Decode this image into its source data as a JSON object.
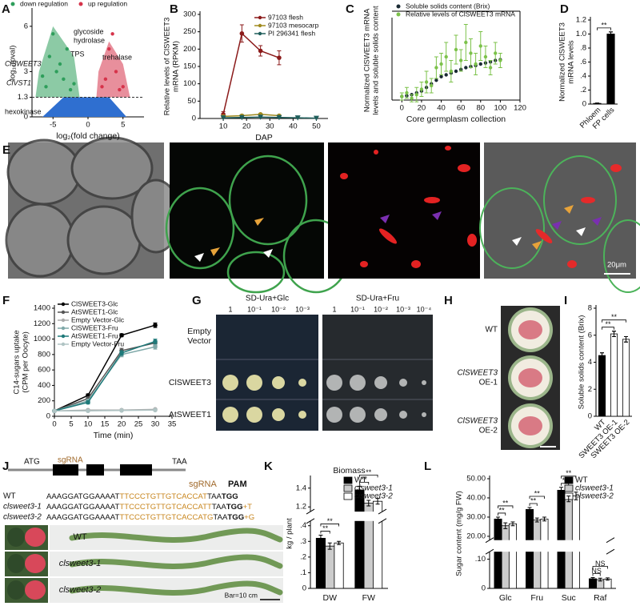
{
  "chart_data": [
    {
      "type": "scatter",
      "label": "A",
      "xlabel": "log₂(fold change)",
      "ylabel": [
        "-log₁₀(pval)"
      ],
      "xlim": [
        -8,
        8
      ],
      "xticks": [
        -5,
        0,
        5
      ],
      "ylim": [
        0,
        7
      ],
      "yticks": [
        0,
        1.3,
        3,
        6
      ],
      "threshold": 1.3,
      "series": [
        {
          "name": "down regulation",
          "color": "#2e9e5b",
          "x": [
            -6.5,
            -6,
            -5.5,
            -5,
            -4.5,
            -4,
            -3.5,
            -3,
            -2.5,
            -2
          ],
          "values": [
            2.7,
            2,
            4,
            5.5,
            3,
            3.5,
            2.5,
            4.5,
            1.8,
            2.2
          ]
        },
        {
          "name": "up regulation",
          "color": "#d6334a",
          "x": [
            2,
            2.5,
            3,
            3.5,
            4,
            4.5,
            5
          ],
          "values": [
            2,
            2.5,
            4.5,
            5.5,
            3,
            1.8,
            2
          ]
        }
      ],
      "annotations": [
        "ClSWEET3",
        "glycoside",
        "hydrolase",
        "TPS",
        "trehalase",
        "ClVST1",
        "hexokinase"
      ]
    },
    {
      "type": "line",
      "label": "B",
      "ylabel": [
        "Relative levels of ClSWEET3",
        "mRNA (RPKM)"
      ],
      "xlabel": "DAP",
      "xlim": [
        0,
        55
      ],
      "xticks": [
        10,
        20,
        30,
        40,
        50
      ],
      "ylim": [
        0,
        300
      ],
      "yticks": [
        0,
        50,
        100,
        150,
        200,
        250,
        300
      ],
      "series": [
        {
          "name": "97103 flesh",
          "color": "#8b1a1a",
          "marker": "circle",
          "x": [
            10,
            18,
            26,
            34
          ],
          "values": [
            12,
            245,
            195,
            175
          ],
          "errors": [
            8,
            25,
            15,
            20
          ]
        },
        {
          "name": "97103 mesocarp",
          "color": "#a08a1e",
          "marker": "circle",
          "x": [
            10,
            18,
            26,
            34
          ],
          "values": [
            6,
            8,
            12,
            8
          ],
          "errors": [
            2,
            3,
            3,
            2
          ]
        },
        {
          "name": "PI 296341 flesh",
          "color": "#1f5e5b",
          "marker": "triangle",
          "x": [
            10,
            18,
            26,
            34,
            42,
            50
          ],
          "values": [
            2,
            3,
            4,
            3,
            2,
            1
          ]
        }
      ]
    },
    {
      "type": "scatter",
      "label": "C",
      "ylabel": [
        "Normalized ClSWEET3 mRNA",
        "levels and soluble solids content"
      ],
      "xlabel": "Core germplasm collection",
      "xlim": [
        -10,
        120
      ],
      "xticks": [
        0,
        20,
        40,
        60,
        80,
        100,
        120
      ],
      "ylim": [
        0,
        22
      ],
      "box": true,
      "series": [
        {
          "name": "Soluble solids content (Brix)",
          "color": "#1a2a33",
          "x": [
            0,
            5,
            10,
            15,
            20,
            25,
            30,
            35,
            40,
            45,
            50,
            55,
            60,
            65,
            70,
            75,
            80,
            85,
            90,
            95,
            100
          ],
          "values": [
            1,
            1.2,
            1.5,
            2,
            2.5,
            3.5,
            4.5,
            5.5,
            6.5,
            7,
            7.5,
            8,
            8.5,
            9,
            9.3,
            9.6,
            10,
            10.3,
            10.6,
            11,
            11.2
          ]
        },
        {
          "name": "Relative levels of ClSWEET3 mRNA",
          "color": "#7cc24a",
          "x": [
            0,
            5,
            10,
            15,
            20,
            25,
            30,
            35,
            40,
            45,
            50,
            55,
            60,
            65,
            70,
            75,
            80,
            85,
            90,
            95,
            100
          ],
          "values": [
            1,
            2,
            0.5,
            1.5,
            3,
            5,
            4,
            9,
            10,
            12,
            8,
            14,
            11,
            16,
            13,
            10,
            15,
            12,
            9,
            13,
            11
          ],
          "errors": [
            1,
            1.5,
            1,
            2,
            2,
            3,
            2,
            3,
            3,
            4,
            3,
            4,
            3,
            5,
            4,
            3,
            4,
            3,
            2,
            3,
            2
          ]
        }
      ]
    },
    {
      "type": "bar",
      "label": "D",
      "ylabel": [
        "Normalized ClSWEET3",
        "mRNA levels"
      ],
      "categories": [
        "Phloem",
        "FP cells"
      ],
      "values": [
        0.01,
        1.0
      ],
      "errors": [
        0.005,
        0.03
      ],
      "colors": [
        "#000000",
        "#000000"
      ],
      "ylim": [
        0,
        1.2
      ],
      "yticks": [
        0,
        {
          "value": 0.2,
          "label": ".2"
        },
        {
          "value": 0.4,
          "label": ".4"
        },
        {
          "value": 0.6,
          "label": ".6"
        },
        {
          "value": 0.8,
          "label": ".8"
        },
        {
          "value": 1.0,
          "label": "1.0"
        },
        1.2
      ],
      "annotations": [
        "**"
      ]
    },
    {
      "type": "line",
      "label": "F",
      "ylabel": [
        "C14-sugars uptake",
        "(CPM per Oocyte)"
      ],
      "xlabel": "Time (min)",
      "xlim": [
        0,
        35
      ],
      "xticks": [
        0,
        5,
        10,
        15,
        20,
        25,
        30,
        35
      ],
      "ylim": [
        0,
        1400
      ],
      "yticks": [
        0,
        200,
        400,
        600,
        800,
        1000,
        1200,
        1400
      ],
      "series": [
        {
          "name": "ClSWEET3-Glc",
          "color": "#000000",
          "marker": "circle",
          "x": [
            0,
            10,
            20,
            30
          ],
          "values": [
            70,
            270,
            1050,
            1180
          ],
          "errors": [
            5,
            20,
            20,
            30
          ]
        },
        {
          "name": "AtSWEET1-Glc",
          "color": "#555555",
          "marker": "circle",
          "x": [
            0,
            10,
            20,
            30
          ],
          "values": [
            70,
            230,
            850,
            950
          ],
          "errors": [
            5,
            20,
            30,
            30
          ]
        },
        {
          "name": "Empty Vector-Glc",
          "color": "#aaaaaa",
          "marker": "circle",
          "x": [
            0,
            10,
            20,
            30
          ],
          "values": [
            70,
            80,
            80,
            90
          ],
          "errors": [
            5,
            5,
            5,
            5
          ]
        },
        {
          "name": "ClSWEET3-Fru",
          "color": "#7fa8a8",
          "marker": "circle",
          "x": [
            0,
            10,
            20,
            30
          ],
          "values": [
            70,
            200,
            800,
            900
          ],
          "errors": [
            5,
            20,
            30,
            30
          ]
        },
        {
          "name": "AtSWEET1-Fru",
          "color": "#1f7a7a",
          "marker": "circle",
          "x": [
            0,
            10,
            20,
            30
          ],
          "values": [
            70,
            180,
            820,
            970
          ],
          "errors": [
            5,
            20,
            30,
            30
          ]
        },
        {
          "name": "Empty Vector-Fru",
          "color": "#b0c4c4",
          "marker": "circle",
          "x": [
            0,
            10,
            20,
            30
          ],
          "values": [
            70,
            70,
            75,
            80
          ],
          "errors": [
            5,
            5,
            5,
            5
          ]
        }
      ]
    },
    {
      "type": "bar",
      "label": "I",
      "ylabel": [
        "Soluble solids content (Brix)"
      ],
      "categories": [
        "WT",
        "SWEET3 OE-1",
        "SWEET3 OE-2"
      ],
      "values": [
        4.5,
        6.1,
        5.7
      ],
      "errors": [
        0.2,
        0.2,
        0.2
      ],
      "colors": [
        "#000000",
        "#ffffff",
        "#ffffff"
      ],
      "ylim": [
        0,
        8
      ],
      "yticks": [
        0,
        2,
        4,
        6,
        8
      ],
      "annotations": [
        "**",
        "**"
      ]
    },
    {
      "type": "bar",
      "label": "K",
      "title": "Biomass",
      "ylabel": [
        "kg / plant"
      ],
      "categories": [
        "DW",
        "FW"
      ],
      "series": [
        {
          "name": "WT",
          "color": "#000000",
          "values": [
            0.32,
            1.38
          ],
          "errors": [
            0.02,
            0.04
          ]
        },
        {
          "name": "clsweet3-1",
          "color": "#cccccc",
          "values": [
            0.27,
            1.24
          ],
          "errors": [
            0.02,
            0.03
          ]
        },
        {
          "name": "clsweet3-2",
          "color": "#ffffff",
          "values": [
            0.29,
            1.26
          ],
          "errors": [
            0.01,
            0.03
          ]
        }
      ],
      "ylim": [
        0,
        1.5
      ],
      "ybreak": [
        0.42,
        1.15
      ],
      "yticks": [
        0,
        {
          "value": 0.1,
          "label": ".1"
        },
        {
          "value": 0.2,
          "label": ".2"
        },
        {
          "value": 0.3,
          "label": ".3"
        },
        {
          "value": 0.4,
          "label": ".4"
        },
        1.2,
        1.4
      ],
      "annotations": [
        "**",
        "**",
        "**",
        "**"
      ]
    },
    {
      "type": "bar",
      "label": "L",
      "ylabel": [
        "Sugar content (mg/g FW)"
      ],
      "categories": [
        "Glc",
        "Fru",
        "Suc",
        "Raf"
      ],
      "series": [
        {
          "name": "WT",
          "color": "#000000",
          "values": [
            29,
            34,
            44,
            0.033
          ],
          "errors": [
            1,
            1,
            1.5,
            0.004
          ]
        },
        {
          "name": "clsweet3-1",
          "color": "#cccccc",
          "values": [
            25.5,
            28.5,
            39.5,
            0.03
          ],
          "errors": [
            1.5,
            1,
            1.5,
            0.005
          ]
        },
        {
          "name": "clsweet3-2",
          "color": "#ffffff",
          "values": [
            26.5,
            29,
            41,
            0.032
          ],
          "errors": [
            1,
            1,
            2,
            0.004
          ]
        }
      ],
      "ylim": [
        0,
        50
      ],
      "ybreak": [
        0.12,
        18
      ],
      "yticks": [
        0,
        {
          "value": 0.1,
          "label": ".10"
        },
        {
          "value": 20,
          "label": "20.00"
        },
        {
          "value": 30,
          "label": "30.00"
        },
        {
          "value": 40,
          "label": "40.00"
        },
        {
          "value": 50,
          "label": "50.00"
        }
      ],
      "annotations": [
        "**",
        "**",
        "**",
        "**",
        "**",
        "**",
        "NS",
        "NS"
      ]
    }
  ],
  "panel_E": {
    "label": "E",
    "scale_bar": "20μm"
  },
  "panel_G": {
    "label": "G",
    "plates": [
      "SD-Ura+Glc",
      "SD-Ura+Fru"
    ],
    "dilutions": [
      [
        "1",
        "10⁻¹",
        "10⁻²",
        "10⁻³"
      ],
      [
        "1",
        "10⁻¹",
        "10⁻²",
        "10⁻³",
        "10⁻⁴"
      ]
    ],
    "rows": [
      [
        "Empty",
        "Vector"
      ],
      [
        "ClSWEET3"
      ],
      [
        "AtSWEET1"
      ]
    ]
  },
  "panel_H": {
    "label": "H",
    "rows": [
      [
        "WT"
      ],
      [
        "ClSWEET3",
        "OE-1"
      ],
      [
        "ClSWEET3",
        "OE-2"
      ]
    ]
  },
  "panel_J": {
    "label": "J",
    "gene": {
      "start": "ATG",
      "guide": "sgRNA",
      "stop": "TAA"
    },
    "header": {
      "guide": "sgRNA",
      "pam": "PAM"
    },
    "sequences": [
      {
        "name": "WT",
        "parts": [
          "AAAGGATGGAAAAT",
          "TTCCCTGTTGTCACCAT",
          "TAA",
          "TGG"
        ]
      },
      {
        "name": "clsweet3-1",
        "parts": [
          "AAAGGATGGAAAAT",
          "TTCCCTGTTGTCACCATT",
          "TAA",
          "TGG",
          "+T"
        ]
      },
      {
        "name": "clsweet3-2",
        "parts": [
          "AAAGGATGGAAAAT",
          "TTCCCTGTTGTCACCATG",
          "TAA",
          "TGG",
          "+G"
        ]
      }
    ],
    "plants": [
      "WT",
      "clsweet3-1",
      "clsweet3-2"
    ],
    "scale_bar": "Bar=10 cm"
  }
}
